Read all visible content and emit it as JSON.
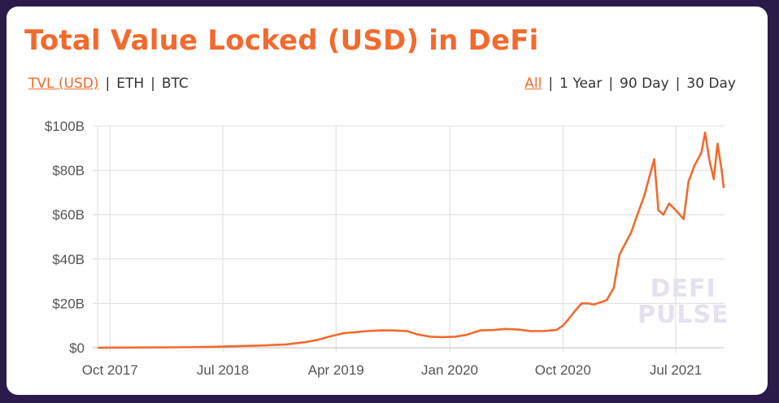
{
  "header": {
    "title": "Total Value Locked (USD) in DeFi"
  },
  "metric_tabs": [
    {
      "label": "TVL (USD)",
      "active": true
    },
    {
      "label": "ETH",
      "active": false
    },
    {
      "label": "BTC",
      "active": false
    }
  ],
  "range_tabs": [
    {
      "label": "All",
      "active": true
    },
    {
      "label": "1 Year",
      "active": false
    },
    {
      "label": "90 Day",
      "active": false
    },
    {
      "label": "30 Day",
      "active": false
    }
  ],
  "separator": "|",
  "watermark": {
    "line1": "DEFI",
    "line2": "PULSE"
  },
  "colors": {
    "accent": "#f26a2e",
    "background": "#2b1b4a",
    "grid": "#dcdcdc"
  },
  "chart_data": {
    "type": "line",
    "title": "Total Value Locked (USD) in DeFi",
    "xlabel": "",
    "ylabel": "",
    "x_tick_labels": [
      "Oct 2017",
      "Jul 2018",
      "Apr 2019",
      "Jan 2020",
      "Oct 2020",
      "Jul 2021"
    ],
    "y_tick_labels": [
      "$0",
      "$20B",
      "$40B",
      "$60B",
      "$80B",
      "$100B"
    ],
    "y_ticks": [
      0,
      20,
      40,
      60,
      80,
      100
    ],
    "ylim": [
      0,
      100
    ],
    "y_unit": "USD billions",
    "x_range": [
      "2017-09-01",
      "2021-10-25"
    ],
    "grid": true,
    "legend": "none",
    "series": [
      {
        "x": [
          "2017-09-01",
          "2017-12-01",
          "2018-03-01",
          "2018-06-01",
          "2018-08-01",
          "2018-10-01",
          "2018-12-01",
          "2019-01-15",
          "2019-02-15",
          "2019-03-15",
          "2019-04-20",
          "2019-05-15",
          "2019-06-15",
          "2019-07-15",
          "2019-08-15",
          "2019-09-20",
          "2019-10-15",
          "2019-11-15",
          "2019-12-15",
          "2020-01-15",
          "2020-02-10",
          "2020-03-01",
          "2020-03-15",
          "2020-04-15",
          "2020-05-15",
          "2020-06-15",
          "2020-07-15",
          "2020-08-15",
          "2020-09-01",
          "2020-09-15",
          "2020-10-01",
          "2020-10-15",
          "2020-11-01",
          "2020-11-15",
          "2020-12-01",
          "2020-12-15",
          "2021-01-01",
          "2021-01-15",
          "2021-02-01",
          "2021-02-15",
          "2021-03-01",
          "2021-03-15",
          "2021-04-01",
          "2021-04-15",
          "2021-05-10",
          "2021-05-20",
          "2021-06-01",
          "2021-06-15",
          "2021-07-01",
          "2021-07-20",
          "2021-08-01",
          "2021-08-15",
          "2021-09-01",
          "2021-09-10",
          "2021-09-20",
          "2021-10-01",
          "2021-10-10",
          "2021-10-20",
          "2021-10-25"
        ],
        "values": [
          0,
          0.1,
          0.2,
          0.4,
          0.7,
          1.0,
          1.5,
          2.5,
          3.5,
          5.0,
          6.6,
          7.0,
          7.5,
          7.8,
          7.8,
          7.5,
          6.0,
          5.0,
          4.8,
          5.0,
          5.8,
          7.0,
          7.8,
          8.0,
          8.5,
          8.2,
          7.5,
          7.5,
          7.8,
          8.0,
          10.0,
          13.0,
          17.0,
          20.0,
          20.0,
          19.5,
          20.5,
          21.5,
          27.0,
          42.0,
          47.0,
          52.0,
          61.0,
          68.0,
          85.0,
          62.0,
          60.0,
          65.0,
          62.0,
          58.0,
          75.0,
          82.0,
          88.0,
          97.0,
          85.0,
          76.0,
          92.0,
          80.0,
          72.0
        ]
      }
    ]
  }
}
